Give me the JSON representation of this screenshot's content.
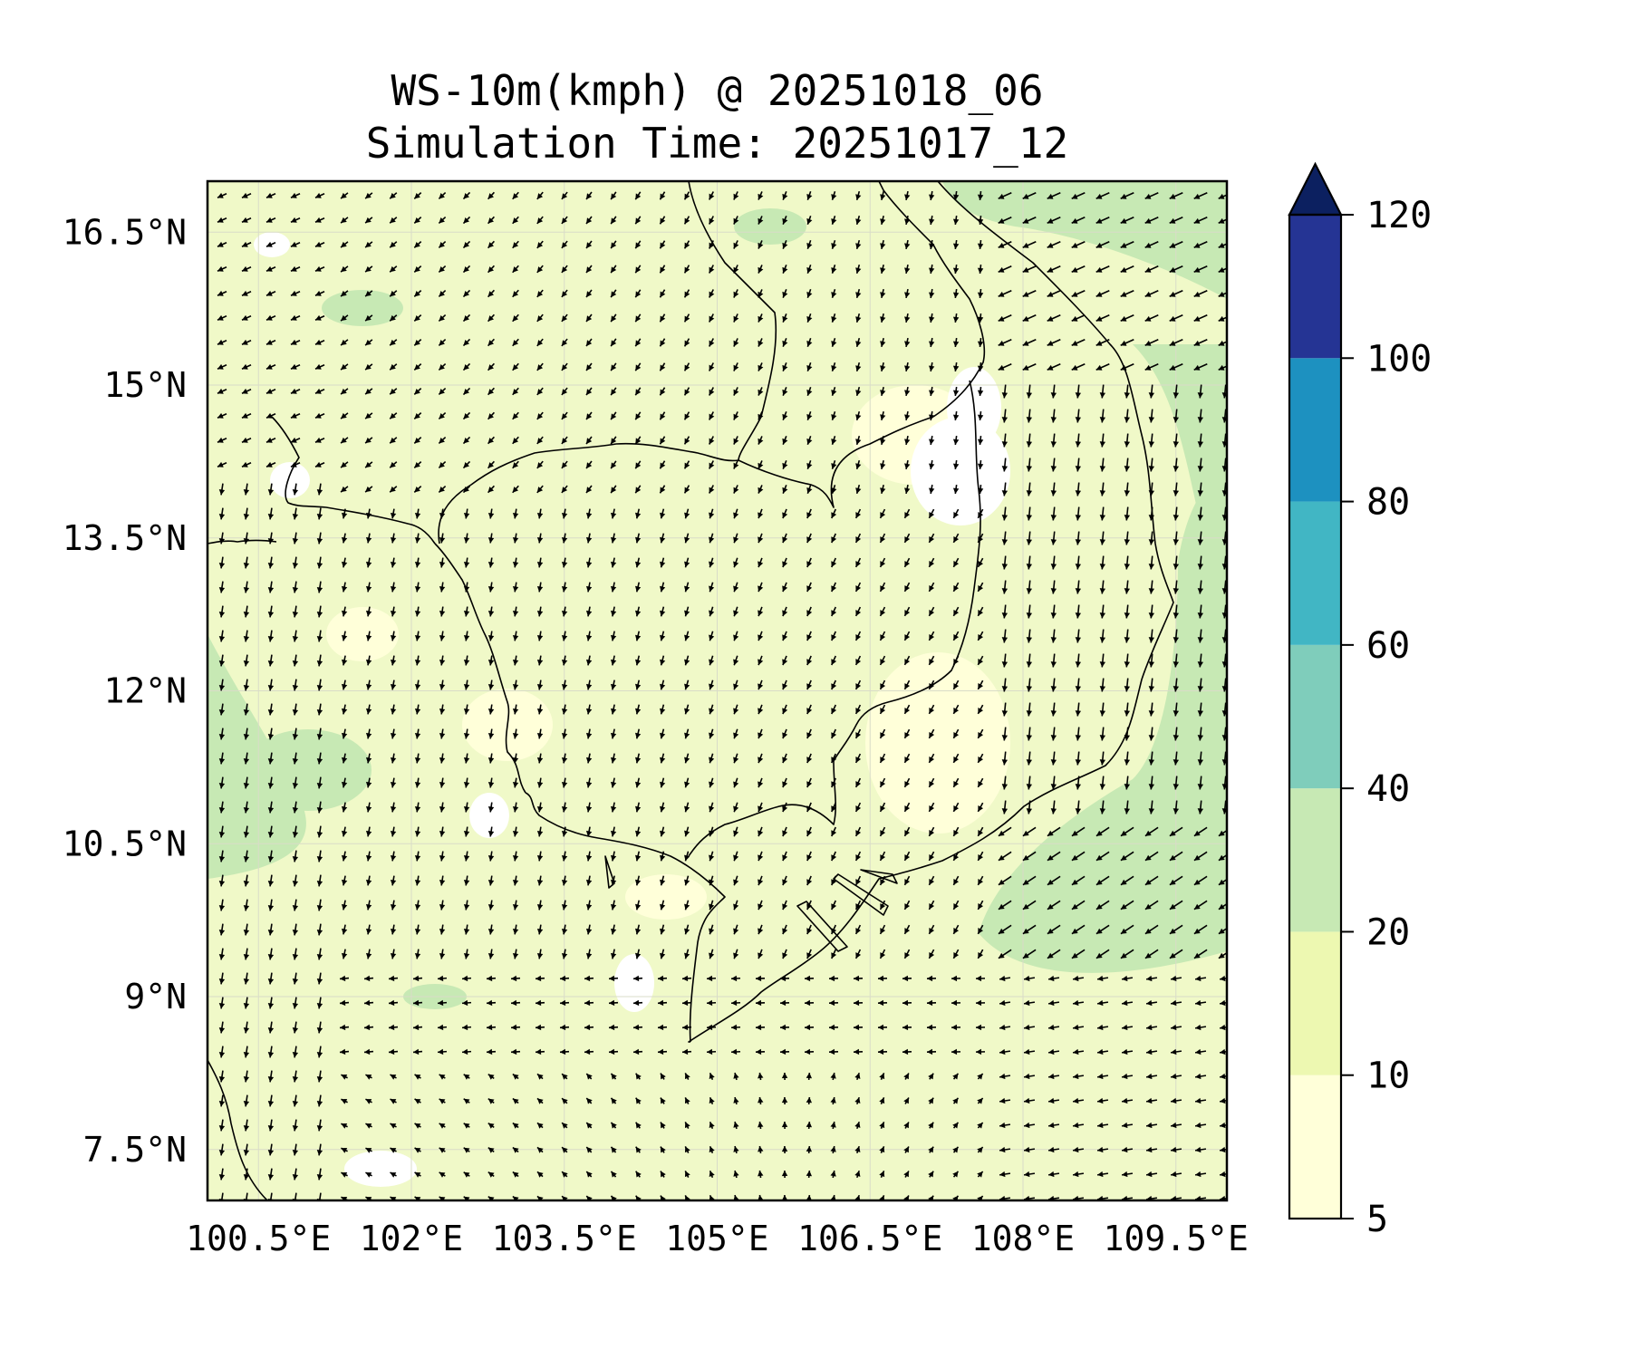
{
  "title": {
    "line1": "WS-10m(kmph) @ 20251018_06",
    "line2": "Simulation Time: 20251017_12"
  },
  "map": {
    "lon_range": [
      100.0,
      110.0
    ],
    "lat_range": [
      7.0,
      17.0
    ],
    "lon_ticks": [
      {
        "value": 100.5,
        "label": "100.5°E"
      },
      {
        "value": 102.0,
        "label": "102°E"
      },
      {
        "value": 103.5,
        "label": "103.5°E"
      },
      {
        "value": 105.0,
        "label": "105°E"
      },
      {
        "value": 106.5,
        "label": "106.5°E"
      },
      {
        "value": 108.0,
        "label": "108°E"
      },
      {
        "value": 109.5,
        "label": "109.5°E"
      }
    ],
    "lat_ticks": [
      {
        "value": 16.5,
        "label": "16.5°N"
      },
      {
        "value": 15.0,
        "label": "15°N"
      },
      {
        "value": 13.5,
        "label": "13.5°N"
      },
      {
        "value": 12.0,
        "label": "12°N"
      },
      {
        "value": 10.5,
        "label": "10.5°N"
      },
      {
        "value": 9.0,
        "label": "9°N"
      },
      {
        "value": 7.5,
        "label": "7.5°N"
      }
    ],
    "gridlines": true,
    "background_color": "#f0f9c8",
    "vectors": "wind arrows (10 m wind direction)"
  },
  "colorbar": {
    "levels": [
      {
        "value": 5,
        "label": "5"
      },
      {
        "value": 10,
        "label": "10"
      },
      {
        "value": 20,
        "label": "20"
      },
      {
        "value": 40,
        "label": "40"
      },
      {
        "value": 60,
        "label": "60"
      },
      {
        "value": 80,
        "label": "80"
      },
      {
        "value": 100,
        "label": "100"
      },
      {
        "value": 120,
        "label": "120"
      }
    ],
    "colors": [
      "#ffffd9",
      "#edf8b1",
      "#c7e9b4",
      "#7fcdbb",
      "#41b6c4",
      "#1d91c0",
      "#253494",
      "#0c2060"
    ],
    "extend": "max"
  }
}
